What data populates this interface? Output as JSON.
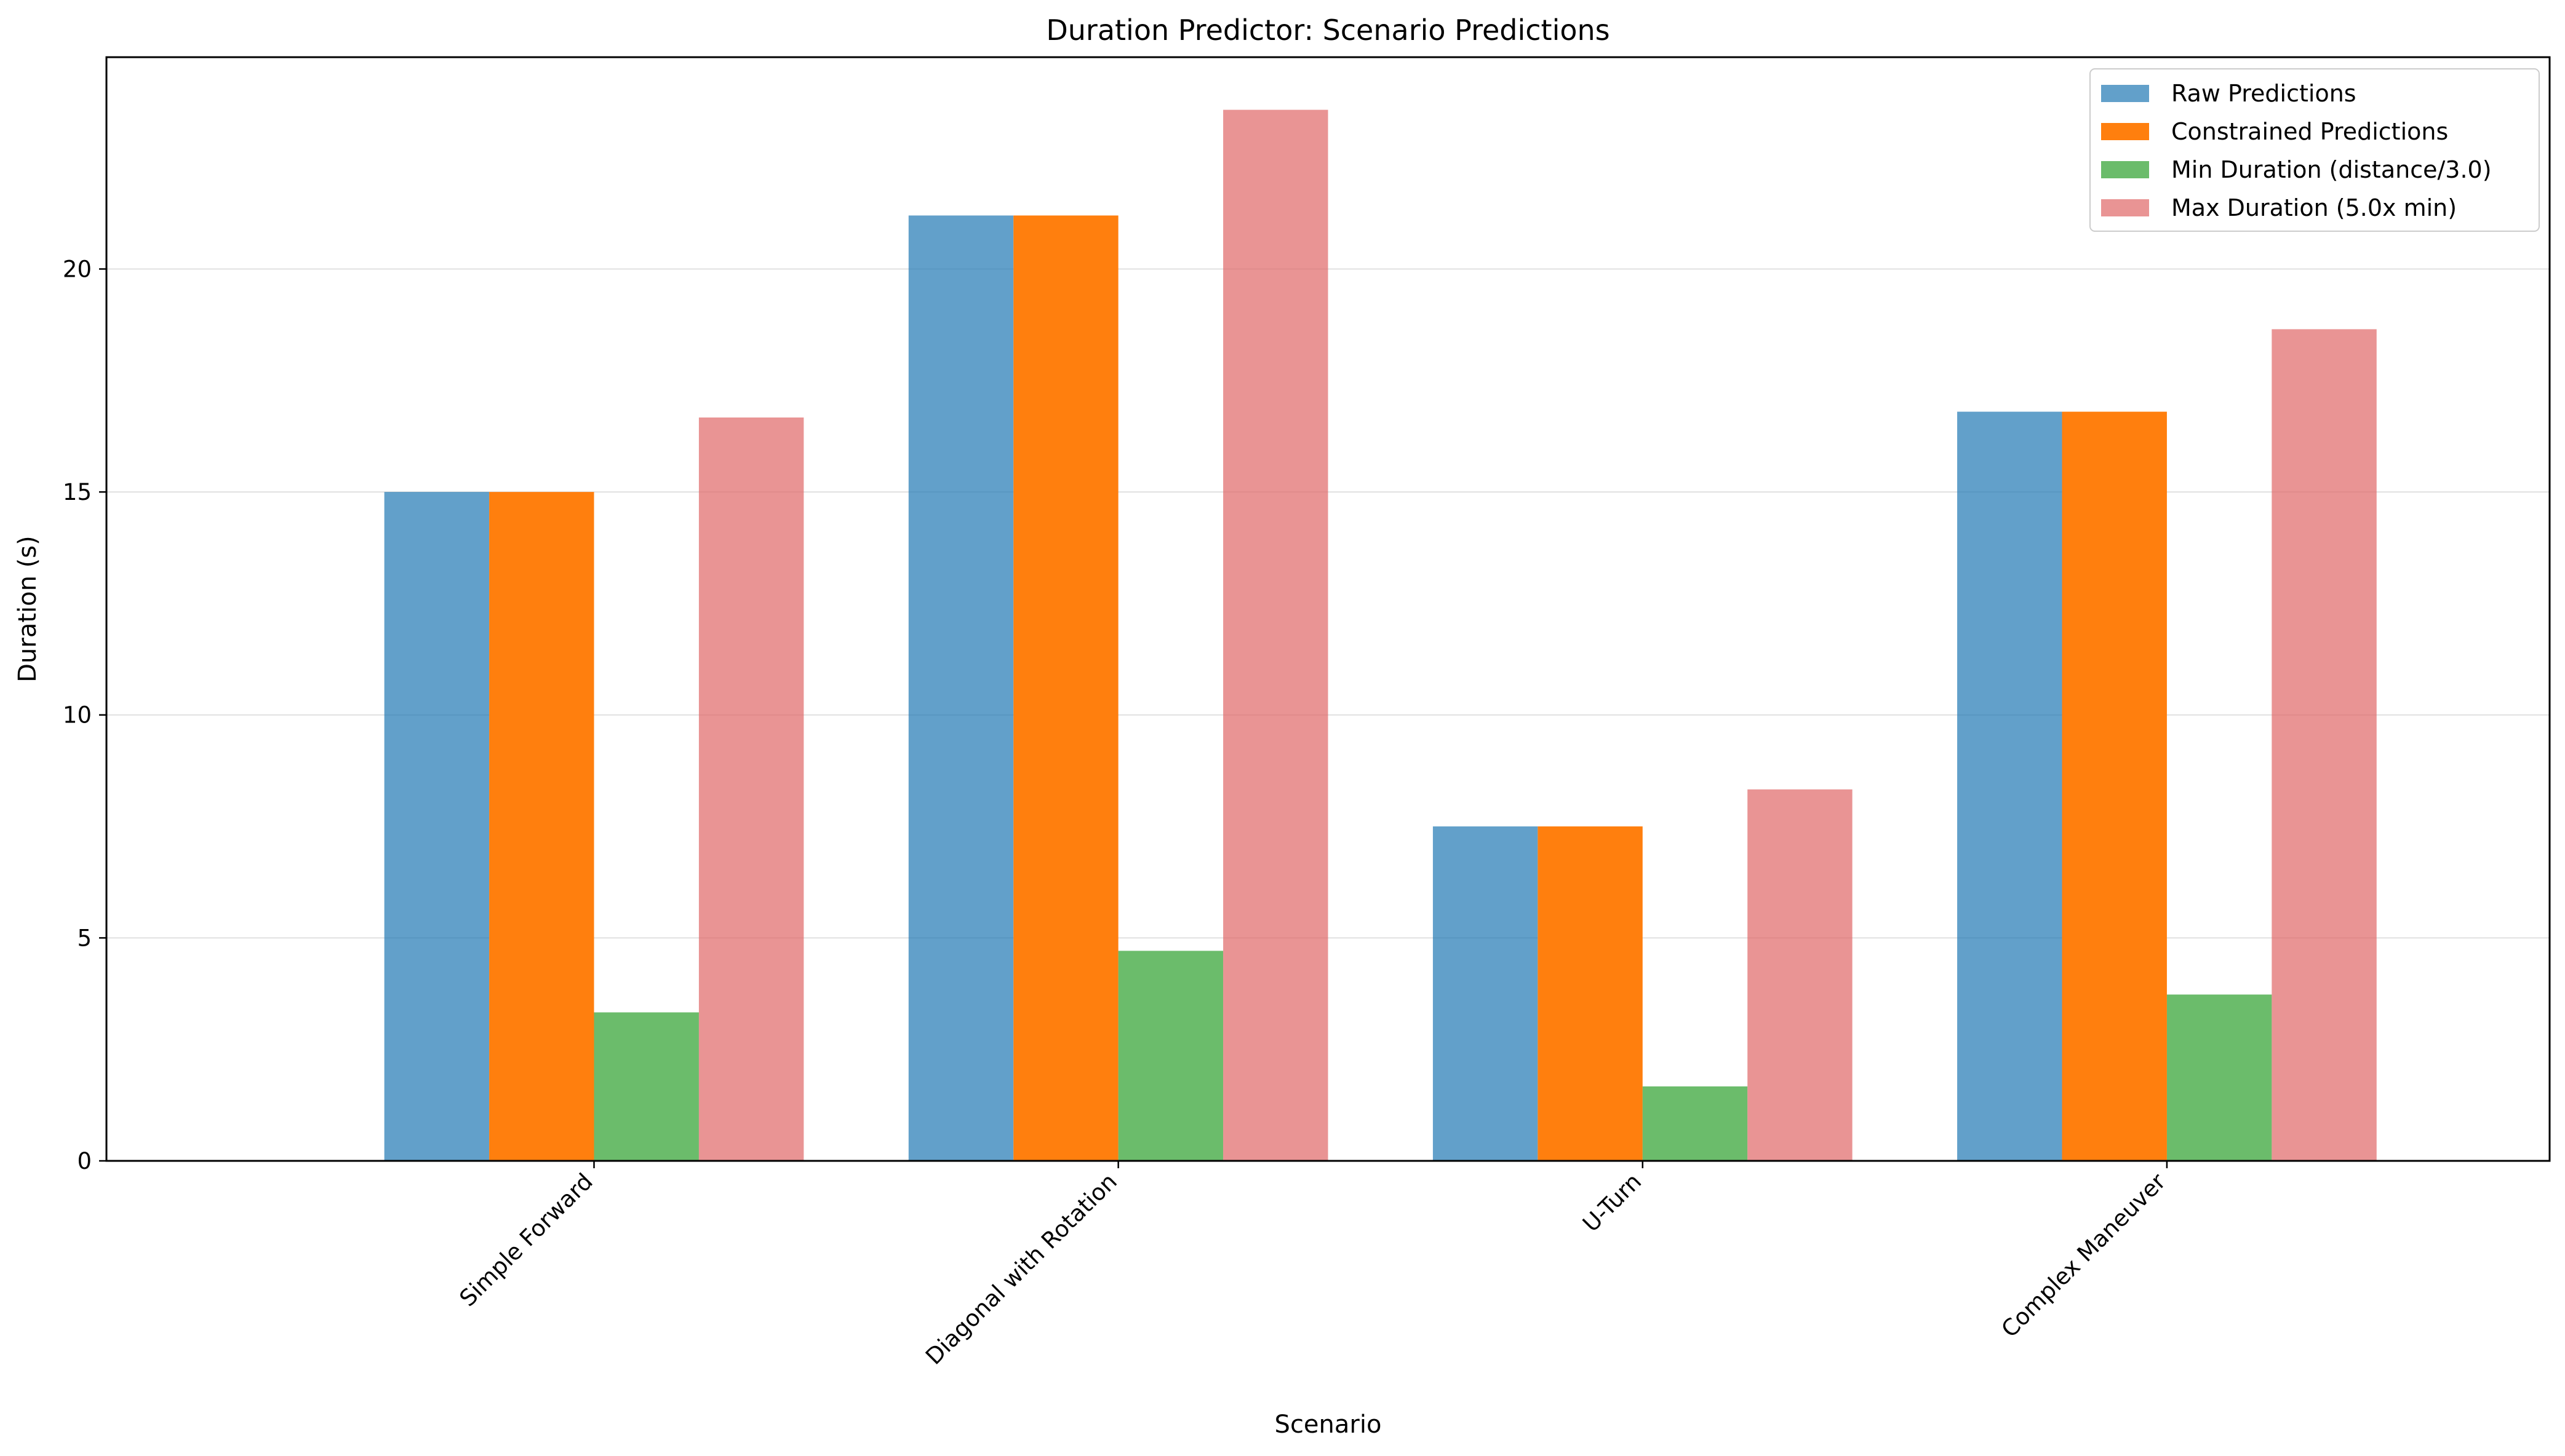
{
  "chart_data": {
    "type": "bar",
    "title": "Duration Predictor: Scenario Predictions",
    "xlabel": "Scenario",
    "ylabel": "Duration (s)",
    "categories": [
      "Simple Forward",
      "Diagonal with Rotation",
      "U-Turn",
      "Complex Maneuver"
    ],
    "series": [
      {
        "name": "Raw Predictions",
        "color": "#1f77b4",
        "opacity": 0.7,
        "values": [
          15.0,
          21.2,
          7.5,
          16.8
        ]
      },
      {
        "name": "Constrained Predictions",
        "color": "#ff7f0e",
        "opacity": 1.0,
        "values": [
          15.0,
          21.2,
          7.5,
          16.8
        ]
      },
      {
        "name": "Min Duration (distance/3.0)",
        "color": "#2ca02c",
        "opacity": 0.7,
        "values": [
          3.33,
          4.71,
          1.67,
          3.73
        ]
      },
      {
        "name": "Max Duration (5.0x min)",
        "color": "#e06666",
        "opacity": 0.7,
        "values": [
          16.67,
          23.57,
          8.33,
          18.65
        ]
      }
    ],
    "yticks": [
      0,
      5,
      10,
      15,
      20
    ],
    "ylim": [
      0,
      24.75
    ],
    "grid": "y",
    "legend_position": "top-right"
  }
}
